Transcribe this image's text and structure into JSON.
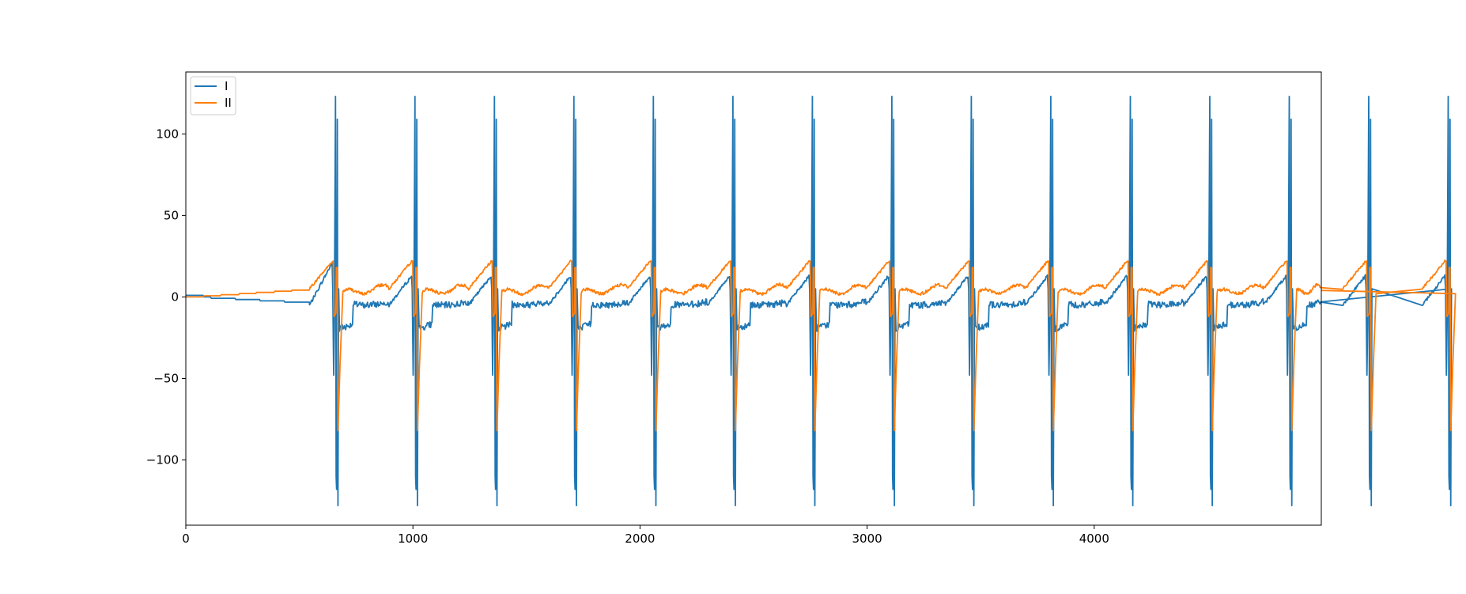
{
  "chart_data": {
    "type": "line",
    "title": "",
    "xlabel": "",
    "ylabel": "",
    "xlim": [
      0,
      5000
    ],
    "ylim": [
      -140,
      138
    ],
    "x_ticks": [
      0,
      1000,
      2000,
      3000,
      4000
    ],
    "x_tick_labels": [
      "0",
      "1000",
      "2000",
      "3000",
      "4000"
    ],
    "y_ticks": [
      -100,
      -50,
      0,
      50,
      100
    ],
    "y_tick_labels": [
      "−100",
      "−50",
      "0",
      "50",
      "100"
    ],
    "grid": false,
    "legend": {
      "placement": "upper-left",
      "entries": [
        "I",
        "II"
      ]
    },
    "beats": {
      "count": 15,
      "first_r_peak_x": 665,
      "rr_interval": 350
    },
    "series": [
      {
        "name": "I",
        "color": "#1f77b4",
        "description_points": {
          "baseline_start": 0,
          "pre_peak_max": 26,
          "r_peak_max": 123,
          "r_second_peak": 109,
          "s_trough_min": -128,
          "q_dip": -48,
          "post_qrs_level": -20,
          "st_level": -3
        }
      },
      {
        "name": "II",
        "color": "#ff7f0e",
        "description_points": {
          "baseline_start": 0,
          "t_wave_max": 22,
          "r_peak": 18,
          "s_trough_min": -82,
          "pre_qrs_dip": -12,
          "st_level": 2
        }
      }
    ]
  }
}
